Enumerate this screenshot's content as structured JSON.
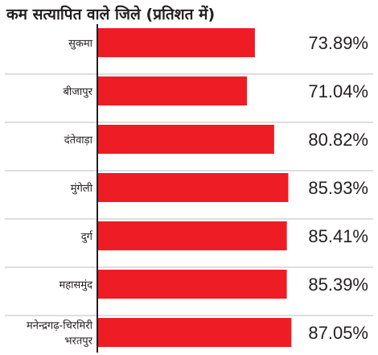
{
  "chart_data": {
    "type": "bar",
    "orientation": "horizontal",
    "title": "कम सत्यापित वाले जिले (प्रतिशत में)",
    "categories": [
      [
        "सुकमा"
      ],
      [
        "बीजापुर"
      ],
      [
        "दंतेवाड़ा"
      ],
      [
        "मुंगेली"
      ],
      [
        "दुर्ग"
      ],
      [
        "महासमुंद"
      ],
      [
        "मनेन्द्रगढ़-चिरमिरी",
        "भरतपुर"
      ]
    ],
    "values": [
      73.89,
      71.04,
      80.82,
      85.93,
      85.41,
      85.39,
      87.05
    ],
    "value_labels": [
      "73.89%",
      "71.04%",
      "80.82%",
      "85.93%",
      "85.41%",
      "85.39%",
      "87.05%"
    ],
    "bar_color": "#ee1c25",
    "grid": true,
    "axis_line_color": "#231f20"
  }
}
